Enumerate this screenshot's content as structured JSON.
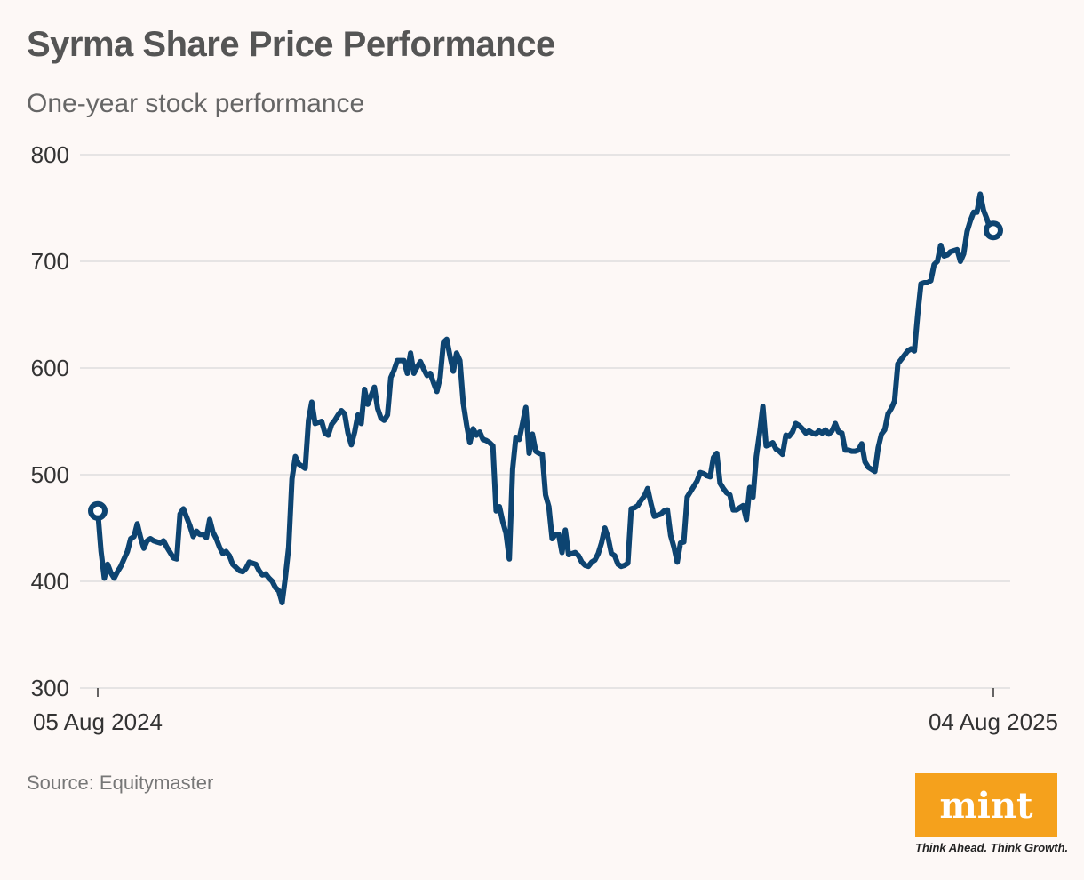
{
  "header": {
    "title": "Syrma Share Price Performance",
    "subtitle": "One-year stock performance"
  },
  "footer": {
    "source": "Source: Equitymaster"
  },
  "brand": {
    "logo_text": "mint",
    "tagline": "Think Ahead. Think Growth.",
    "logo_color": "#f5a11c"
  },
  "colors": {
    "line": "#0d4471",
    "grid": "#dedede",
    "axis_text": "#333333"
  },
  "chart_data": {
    "type": "line",
    "title": "Syrma Share Price Performance",
    "subtitle": "One-year stock performance",
    "xlabel": "",
    "ylabel": "",
    "ylim": [
      300,
      800
    ],
    "yticks": [
      300,
      400,
      500,
      600,
      700,
      800
    ],
    "xtick_labels": [
      "05 Aug 2024",
      "04 Aug 2025"
    ],
    "grid": true,
    "legend": "none",
    "series": [
      {
        "name": "Syrma",
        "start_label": "05 Aug 2024",
        "end_label": "04 Aug 2025",
        "values": [
          466,
          428,
          403,
          416,
          408,
          403,
          409,
          414,
          421,
          428,
          440,
          442,
          454,
          441,
          431,
          438,
          440,
          438,
          437,
          436,
          438,
          432,
          427,
          422,
          421,
          463,
          468,
          460,
          452,
          442,
          447,
          444,
          444,
          441,
          458,
          446,
          440,
          432,
          426,
          428,
          424,
          416,
          413,
          410,
          409,
          412,
          418,
          417,
          416,
          410,
          406,
          407,
          403,
          400,
          394,
          391,
          380,
          404,
          432,
          496,
          517,
          510,
          508,
          506,
          551,
          568,
          548,
          549,
          550,
          539,
          537,
          547,
          551,
          556,
          560,
          557,
          539,
          528,
          540,
          556,
          548,
          580,
          566,
          574,
          582,
          562,
          553,
          551,
          556,
          591,
          598,
          607,
          607,
          607,
          595,
          614,
          595,
          601,
          606,
          599,
          593,
          595,
          586,
          578,
          591,
          624,
          627,
          611,
          597,
          614,
          607,
          567,
          547,
          530,
          543,
          537,
          540,
          533,
          532,
          530,
          527,
          466,
          470,
          456,
          445,
          421,
          505,
          535,
          533,
          548,
          563,
          520,
          538,
          522,
          520,
          519,
          481,
          470,
          440,
          444,
          444,
          427,
          448,
          425,
          426,
          427,
          424,
          418,
          415,
          414,
          418,
          420,
          426,
          436,
          450,
          441,
          426,
          424,
          416,
          414,
          415,
          417,
          468,
          469,
          471,
          476,
          480,
          487,
          473,
          461,
          462,
          463,
          466,
          467,
          443,
          432,
          418,
          436,
          437,
          479,
          484,
          489,
          494,
          502,
          501,
          499,
          498,
          516,
          520,
          492,
          487,
          483,
          481,
          467,
          467,
          469,
          471,
          458,
          488,
          479,
          517,
          539,
          564,
          527,
          528,
          530,
          524,
          522,
          519,
          537,
          536,
          540,
          548,
          546,
          543,
          539,
          541,
          539,
          538,
          541,
          539,
          542,
          538,
          541,
          548,
          540,
          539,
          523,
          523,
          522,
          522,
          523,
          529,
          512,
          507,
          505,
          503,
          525,
          538,
          542,
          557,
          562,
          569,
          604,
          608,
          612,
          616,
          618,
          616,
          650,
          679,
          680,
          680,
          682,
          697,
          700,
          715,
          705,
          706,
          709,
          710,
          711,
          700,
          707,
          728,
          738,
          746,
          746,
          763,
          748,
          740,
          731,
          729
        ]
      }
    ]
  }
}
